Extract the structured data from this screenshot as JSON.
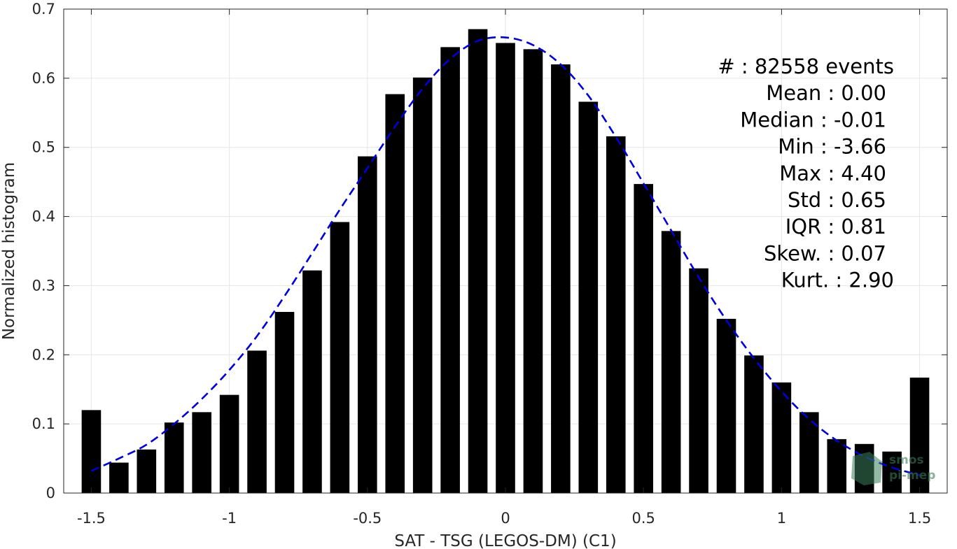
{
  "chart_data": {
    "type": "bar",
    "xlabel": "SAT - TSG (LEGOS-DM) (C1)",
    "ylabel": "Normalized histogram",
    "xlim": [
      -1.6,
      1.6
    ],
    "ylim": [
      0,
      0.7
    ],
    "grid": true,
    "x_ticks": [
      "-1.5",
      "-1",
      "-0.5",
      "0",
      "0.5",
      "1",
      "1.5"
    ],
    "y_ticks": [
      "0",
      "0.1",
      "0.2",
      "0.3",
      "0.4",
      "0.5",
      "0.6",
      "0.7"
    ],
    "bar_width": 0.07,
    "x": [
      -1.5,
      -1.4,
      -1.3,
      -1.2,
      -1.1,
      -1.0,
      -0.9,
      -0.8,
      -0.7,
      -0.6,
      -0.5,
      -0.4,
      -0.3,
      -0.2,
      -0.1,
      0.0,
      0.1,
      0.2,
      0.3,
      0.4,
      0.5,
      0.6,
      0.7,
      0.8,
      0.9,
      1.0,
      1.1,
      1.2,
      1.3,
      1.4,
      1.5
    ],
    "values": [
      0.12,
      0.044,
      0.063,
      0.102,
      0.117,
      0.142,
      0.206,
      0.262,
      0.322,
      0.392,
      0.487,
      0.577,
      0.601,
      0.645,
      0.671,
      0.651,
      0.642,
      0.62,
      0.566,
      0.516,
      0.447,
      0.379,
      0.325,
      0.252,
      0.199,
      0.16,
      0.117,
      0.078,
      0.071,
      0.06,
      0.167
    ],
    "bar_color": "#000000",
    "fit_curve": {
      "style": "dashed",
      "color": "#0000dd",
      "x": [
        -1.5,
        -1.4,
        -1.3,
        -1.2,
        -1.1,
        -1.0,
        -0.9,
        -0.8,
        -0.7,
        -0.6,
        -0.5,
        -0.4,
        -0.3,
        -0.2,
        -0.1,
        0.0,
        0.1,
        0.2,
        0.3,
        0.4,
        0.5,
        0.6,
        0.7,
        0.8,
        0.9,
        1.0,
        1.1,
        1.2,
        1.3,
        1.4,
        1.5
      ],
      "y": [
        0.032,
        0.05,
        0.07,
        0.1,
        0.136,
        0.178,
        0.227,
        0.285,
        0.347,
        0.41,
        0.47,
        0.53,
        0.585,
        0.628,
        0.654,
        0.659,
        0.648,
        0.62,
        0.575,
        0.515,
        0.448,
        0.38,
        0.312,
        0.25,
        0.195,
        0.147,
        0.107,
        0.076,
        0.053,
        0.037,
        0.026
      ]
    },
    "annotations": [
      "#  : 82558 events",
      "Mean : 0.00",
      "Median : -0.01",
      "Min : -3.66",
      "Max : 4.40",
      "Std : 0.65",
      "IQR : 0.81",
      "Skew. : 0.07",
      "Kurt. : 2.90"
    ]
  },
  "watermark": {
    "line1": "smos",
    "line2": "pi-mep",
    "color": "#3a7d5a"
  }
}
